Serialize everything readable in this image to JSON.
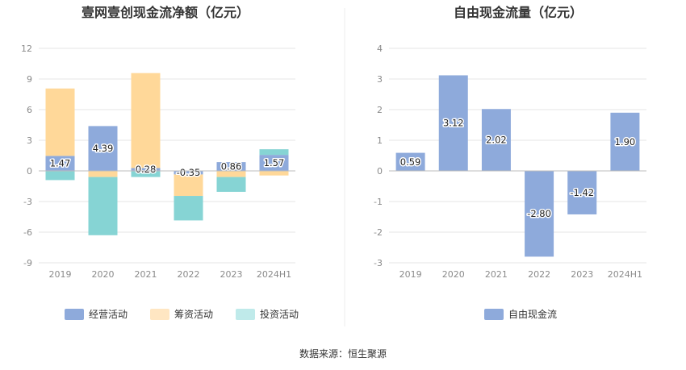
{
  "source_text": "数据来源：恒生聚源",
  "chart_data": [
    {
      "type": "bar",
      "stacked": true,
      "title": "壹网壹创现金流净额（亿元）",
      "categories": [
        "2019",
        "2020",
        "2021",
        "2022",
        "2023",
        "2024H1"
      ],
      "ylim": [
        -9,
        12
      ],
      "yticks": [
        -9,
        -6,
        -3,
        0,
        3,
        6,
        9,
        12
      ],
      "grid": true,
      "legend_position": "bottom",
      "series": [
        {
          "name": "经营活动",
          "color": "#8eaadb",
          "values": [
            1.47,
            4.39,
            0.28,
            -0.35,
            0.86,
            1.57
          ],
          "labels": [
            "1.47",
            "4.39",
            "0.28",
            "-0.35",
            "0.86",
            "1.57"
          ]
        },
        {
          "name": "筹资活动",
          "color": "#ffd899",
          "values": [
            6.6,
            -0.6,
            9.3,
            -2.1,
            -0.6,
            -0.45
          ]
        },
        {
          "name": "投资活动",
          "color": "#86d4d4",
          "values": [
            -0.9,
            -5.7,
            -0.6,
            -2.4,
            -1.45,
            0.55
          ]
        }
      ]
    },
    {
      "type": "bar",
      "title": "自由现金流量（亿元）",
      "categories": [
        "2019",
        "2020",
        "2021",
        "2022",
        "2023",
        "2024H1"
      ],
      "ylim": [
        -3,
        4
      ],
      "yticks": [
        -3,
        -2,
        -1,
        0,
        1,
        2,
        3,
        4
      ],
      "grid": true,
      "legend_position": "bottom",
      "series": [
        {
          "name": "自由现金流",
          "color": "#8eaadb",
          "values": [
            0.59,
            3.12,
            2.02,
            -2.8,
            -1.42,
            1.9
          ],
          "labels": [
            "0.59",
            "3.12",
            "2.02",
            "-2.80",
            "-1.42",
            "1.90"
          ]
        }
      ]
    }
  ]
}
